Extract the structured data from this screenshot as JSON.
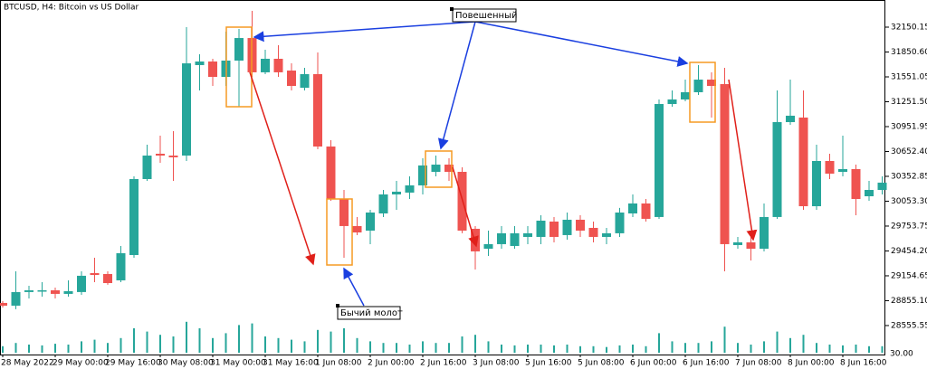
{
  "chart_data": {
    "type": "candlestick",
    "title": "BTCUSD, H4:  Bitcoin vs US Dollar",
    "annotations": [
      "Повешенный",
      "Бычий молот"
    ],
    "volume_axis_label": "30.00",
    "up_color": "#26a69a",
    "down_color": "#ef5350",
    "categories": [
      "28 May 2022",
      null,
      null,
      null,
      "29 May 00:00",
      null,
      null,
      null,
      "29 May 16:00",
      null,
      null,
      null,
      "30 May 08:00",
      null,
      null,
      null,
      "31 May 00:00",
      null,
      null,
      null,
      "31 May 16:00",
      null,
      null,
      null,
      "1 Jun 08:00",
      null,
      null,
      null,
      "2 Jun 00:00",
      null,
      null,
      null,
      "2 Jun 16:00",
      null,
      null,
      null,
      "3 Jun 08:00",
      null,
      null,
      null,
      "5 Jun 16:00",
      null,
      null,
      null,
      "5 Jun 08:00",
      null,
      null,
      null,
      "6 Jun 00:00",
      null,
      null,
      null,
      "6 Jun 16:00",
      null,
      null,
      null,
      "7 Jun 08:00",
      null,
      null,
      null,
      "8 Jun 00:00",
      null,
      null,
      null,
      "8 Jun 16:00",
      null,
      null,
      null
    ],
    "open": [
      28828,
      28795,
      28959,
      28969,
      28980,
      28937,
      28959,
      29187,
      29176,
      29100,
      29405,
      30320,
      30625,
      30603,
      30603,
      31693,
      31736,
      31551,
      31747,
      32019,
      31606,
      31769,
      31627,
      31420,
      31584,
      30712,
      30080,
      29754,
      29699,
      29906,
      30135,
      30157,
      30244,
      30407,
      30494,
      30407,
      29721,
      29481,
      29536,
      29514,
      29623,
      29623,
      29808,
      29645,
      29830,
      29732,
      29623,
      29667,
      29906,
      30026,
      29863,
      31224,
      31279,
      31366,
      31518,
      31464,
      29525,
      29558,
      29481,
      29863,
      31006,
      31061,
      29993,
      30538,
      30407,
      30440,
      30113,
      30189
    ],
    "high": [
      28850,
      29209,
      29035,
      29078,
      29013,
      29100,
      29209,
      29372,
      29209,
      29514,
      30353,
      30734,
      30843,
      30897,
      32150,
      31823,
      31769,
      32096,
      32128,
      32346,
      31878,
      31932,
      31714,
      31660,
      31845,
      30789,
      30189,
      29863,
      29950,
      30189,
      30298,
      30353,
      30571,
      30603,
      30571,
      30462,
      29754,
      29699,
      29754,
      29754,
      29754,
      29884,
      29863,
      29917,
      29884,
      29808,
      29732,
      29972,
      30135,
      30080,
      31279,
      31388,
      31518,
      31693,
      31606,
      31660,
      29623,
      29623,
      30026,
      31388,
      31518,
      31388,
      30734,
      30625,
      30843,
      30494,
      30298,
      30353
    ],
    "low": [
      28773,
      28752,
      28882,
      28904,
      28882,
      28904,
      28926,
      29078,
      29046,
      29078,
      29372,
      30298,
      30516,
      30298,
      30538,
      31388,
      31442,
      31442,
      31192,
      31551,
      31584,
      31551,
      31388,
      31388,
      30680,
      30059,
      29372,
      29645,
      29536,
      29863,
      29950,
      30080,
      30135,
      30353,
      30298,
      29667,
      29231,
      29394,
      29481,
      29481,
      29536,
      29536,
      29558,
      29590,
      29623,
      29558,
      29536,
      29623,
      29863,
      29808,
      29841,
      31192,
      31257,
      31333,
      31061,
      29209,
      29481,
      29340,
      29449,
      29841,
      30974,
      29950,
      29950,
      30320,
      30353,
      29884,
      30059,
      30135
    ],
    "close": [
      28795,
      28959,
      28980,
      28980,
      28937,
      28969,
      29155,
      29165,
      29067,
      29427,
      30320,
      30603,
      30603,
      30582,
      31714,
      31736,
      31551,
      31747,
      32019,
      31606,
      31769,
      31606,
      31442,
      31584,
      30712,
      30080,
      29754,
      29677,
      29917,
      30135,
      30168,
      30244,
      30484,
      30494,
      30407,
      29699,
      29449,
      29536,
      29667,
      29667,
      29667,
      29819,
      29623,
      29830,
      29699,
      29623,
      29667,
      29917,
      30026,
      29841,
      31224,
      31279,
      31366,
      31518,
      31442,
      29536,
      29558,
      29481,
      29863,
      31006,
      31083,
      29993,
      30538,
      30385,
      30440,
      30080,
      30189,
      30277
    ],
    "volume": [
      8,
      12,
      10,
      9,
      11,
      10,
      14,
      16,
      12,
      18,
      30,
      26,
      22,
      20,
      38,
      30,
      18,
      24,
      34,
      36,
      20,
      18,
      16,
      14,
      28,
      26,
      30,
      18,
      14,
      12,
      12,
      10,
      14,
      12,
      12,
      20,
      22,
      14,
      10,
      9,
      10,
      10,
      9,
      10,
      8,
      8,
      7,
      9,
      10,
      8,
      24,
      14,
      12,
      12,
      14,
      32,
      12,
      10,
      14,
      26,
      18,
      22,
      12,
      10,
      9,
      10,
      8,
      8
    ],
    "volume_ylim": [
      0,
      50
    ],
    "ylim": [
      28250,
      32477
    ],
    "yticks": [
      32150.15,
      {
        "value": 31850.6,
        "label": "31850.60"
      },
      31551.05,
      {
        "value": 31251.5,
        "label": "31251.50"
      },
      30951.95,
      {
        "value": 30652.4,
        "label": "30652.40"
      },
      30352.85,
      {
        "value": 30053.3,
        "label": "30053.30"
      },
      29753.75,
      {
        "value": 29454.2,
        "label": "29454.20"
      },
      29154.65,
      {
        "value": 28855.1,
        "label": "28855.10"
      },
      28555.55
    ]
  }
}
